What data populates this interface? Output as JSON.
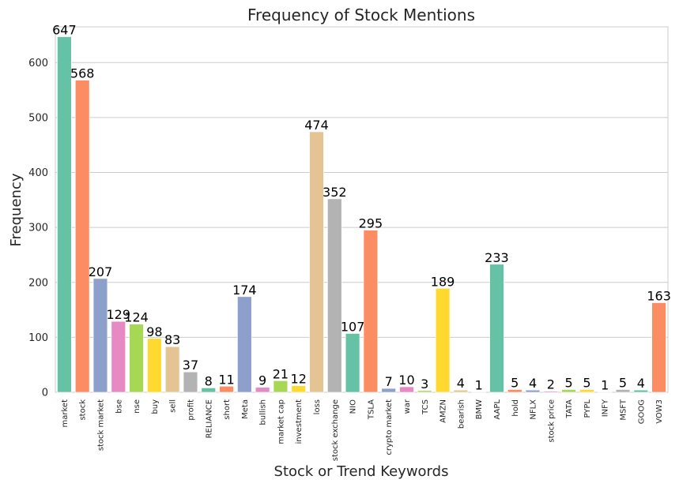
{
  "chart_data": {
    "type": "bar",
    "title": "Frequency of Stock Mentions",
    "xlabel": "Stock or Trend Keywords",
    "ylabel": "Frequency",
    "ylim": [
      0,
      665
    ],
    "yticks": [
      0,
      100,
      200,
      300,
      400,
      500,
      600
    ],
    "grid": "horizontal",
    "categories": [
      "market",
      "stock",
      "stock market",
      "bse",
      "nse",
      "buy",
      "sell",
      "profit",
      "RELIANCE",
      "short",
      "Meta",
      "bullish",
      "market cap",
      "investment",
      "loss",
      "stock exchange",
      "NIO",
      "TSLA",
      "crypto market",
      "war",
      "TCS",
      "AMZN",
      "bearish",
      "BMW",
      "AAPL",
      "hold",
      "NFLX",
      "stock price",
      "TATA",
      "PYPL",
      "INFY",
      "MSFT",
      "GOOG",
      "VOW3"
    ],
    "values": [
      647,
      568,
      207,
      129,
      124,
      98,
      83,
      37,
      8,
      11,
      174,
      9,
      21,
      12,
      474,
      352,
      107,
      295,
      7,
      10,
      3,
      189,
      4,
      1,
      233,
      5,
      4,
      2,
      5,
      5,
      1,
      5,
      4,
      163
    ],
    "palette": [
      "#66c2a5",
      "#fc8d62",
      "#8da0cb",
      "#e78ac3",
      "#a6d854",
      "#ffd92f",
      "#e5c494",
      "#b3b3b3"
    ]
  }
}
